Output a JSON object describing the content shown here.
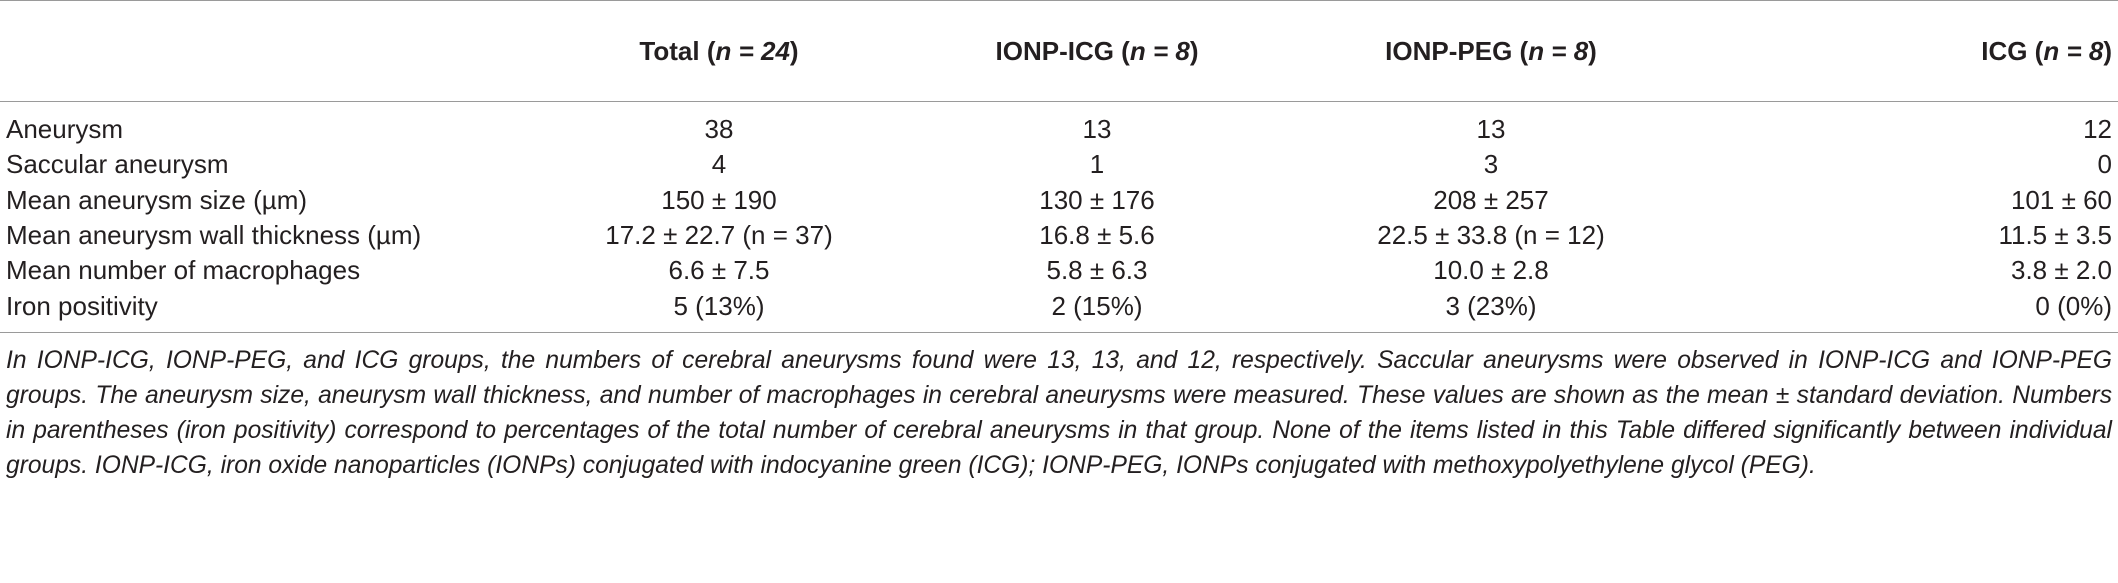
{
  "table": {
    "headers": [
      {
        "label": "",
        "n": ""
      },
      {
        "label": "Total",
        "n": "n = 24"
      },
      {
        "label": "IONP-ICG",
        "n": "n = 8"
      },
      {
        "label": "IONP-PEG",
        "n": "n = 8"
      },
      {
        "label": "ICG",
        "n": "n = 8"
      }
    ],
    "rows": [
      {
        "label": "Aneurysm",
        "total": "38",
        "ionp_icg": "13",
        "ionp_peg": "13",
        "icg": "12"
      },
      {
        "label": "Saccular aneurysm",
        "total": "4",
        "ionp_icg": "1",
        "ionp_peg": "3",
        "icg": "0"
      },
      {
        "label": "Mean aneurysm size (µm)",
        "total": "150 ± 190",
        "ionp_icg": "130 ± 176",
        "ionp_peg": "208 ± 257",
        "icg": "101 ± 60"
      },
      {
        "label": "Mean aneurysm wall thickness (µm)",
        "total": "17.2 ± 22.7 (n = 37)",
        "ionp_icg": "16.8 ± 5.6",
        "ionp_peg": "22.5 ± 33.8 (n = 12)",
        "icg": "11.5 ± 3.5"
      },
      {
        "label": "Mean number of macrophages",
        "total": "6.6 ± 7.5",
        "ionp_icg": "5.8 ± 6.3",
        "ionp_peg": "10.0 ± 2.8",
        "icg": "3.8 ± 2.0"
      },
      {
        "label": "Iron positivity",
        "total": "5 (13%)",
        "ionp_icg": "2 (15%)",
        "ionp_peg": "3 (23%)",
        "icg": "0 (0%)"
      }
    ]
  },
  "footnote": "In IONP-ICG, IONP-PEG, and ICG groups, the numbers of cerebral aneurysms found were 13, 13, and 12, respectively. Saccular aneurysms were observed in IONP-ICG and IONP-PEG groups. The aneurysm size, aneurysm wall thickness, and number of macrophages in cerebral aneurysms were measured. These values are shown as the mean ± standard deviation. Numbers in parentheses (iron positivity) correspond to percentages of the total number of cerebral aneurysms in that group. None of the items listed in this Table differed significantly between individual groups. IONP-ICG, iron oxide nanoparticles (IONPs) conjugated with indocyanine green (ICG); IONP-PEG, IONPs conjugated with methoxypolyethylene glycol (PEG)."
}
